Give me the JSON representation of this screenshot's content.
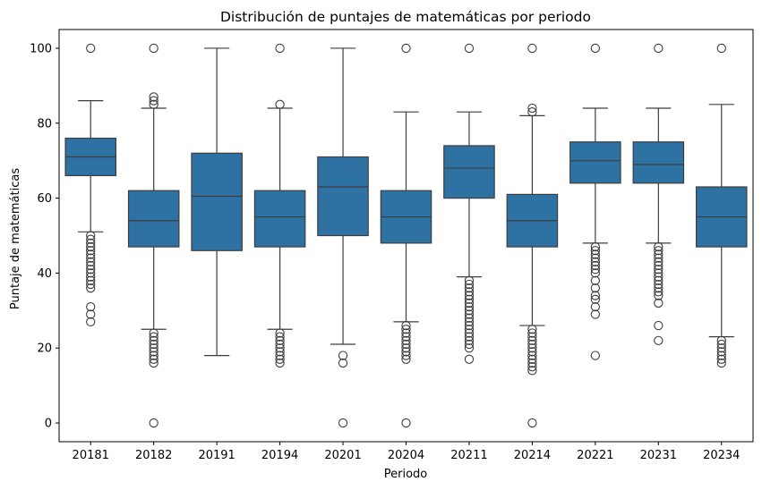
{
  "chart_data": {
    "type": "box",
    "title": "Distribución de puntajes de matemáticas por periodo",
    "xlabel": "Periodo",
    "ylabel": "Puntaje de matemáticas",
    "ylim": [
      -5,
      105
    ],
    "yticks": [
      0,
      20,
      40,
      60,
      80,
      100
    ],
    "grid": false,
    "color": "#2e71a3",
    "categories": [
      "20181",
      "20182",
      "20191",
      "20194",
      "20201",
      "20204",
      "20211",
      "20214",
      "20221",
      "20231",
      "20234"
    ],
    "boxes": [
      {
        "whislo": 51,
        "q1": 66,
        "med": 71,
        "q3": 76,
        "whishi": 86,
        "fliers": [
          27,
          29,
          31,
          36,
          37,
          38,
          39,
          40,
          41,
          42,
          43,
          44,
          45,
          46,
          47,
          48,
          49,
          50,
          100
        ]
      },
      {
        "whislo": 25,
        "q1": 47,
        "med": 54,
        "q3": 62,
        "whishi": 84,
        "fliers": [
          0,
          16,
          17,
          18,
          19,
          20,
          21,
          22,
          23,
          24,
          85,
          86,
          87,
          100
        ]
      },
      {
        "whislo": 18,
        "q1": 46,
        "med": 60.5,
        "q3": 72,
        "whishi": 100,
        "fliers": []
      },
      {
        "whislo": 25,
        "q1": 47,
        "med": 55,
        "q3": 62,
        "whishi": 84,
        "fliers": [
          16,
          17,
          18,
          19,
          20,
          21,
          22,
          23,
          24,
          85,
          100
        ]
      },
      {
        "whislo": 21,
        "q1": 50,
        "med": 63,
        "q3": 71,
        "whishi": 100,
        "fliers": [
          0,
          16,
          18
        ]
      },
      {
        "whislo": 27,
        "q1": 48,
        "med": 55,
        "q3": 62,
        "whishi": 83,
        "fliers": [
          0,
          17,
          18,
          19,
          20,
          21,
          22,
          23,
          24,
          25,
          26,
          100
        ]
      },
      {
        "whislo": 39,
        "q1": 60,
        "med": 68,
        "q3": 74,
        "whishi": 83,
        "fliers": [
          17,
          20,
          21,
          22,
          23,
          24,
          25,
          26,
          27,
          28,
          29,
          30,
          31,
          32,
          33,
          34,
          35,
          36,
          37,
          38,
          100
        ]
      },
      {
        "whislo": 26,
        "q1": 47,
        "med": 54,
        "q3": 61,
        "whishi": 82,
        "fliers": [
          0,
          14,
          15,
          16,
          17,
          18,
          19,
          20,
          21,
          22,
          23,
          24,
          25,
          83,
          84,
          100
        ]
      },
      {
        "whislo": 48,
        "q1": 64,
        "med": 70,
        "q3": 75,
        "whishi": 84,
        "fliers": [
          18,
          29,
          31,
          33,
          34,
          36,
          38,
          40,
          41,
          42,
          43,
          44,
          45,
          46,
          47,
          100
        ]
      },
      {
        "whislo": 48,
        "q1": 64,
        "med": 69,
        "q3": 75,
        "whishi": 84,
        "fliers": [
          22,
          26,
          32,
          34,
          35,
          36,
          37,
          38,
          39,
          40,
          41,
          42,
          43,
          44,
          45,
          46,
          47,
          100
        ]
      },
      {
        "whislo": 23,
        "q1": 47,
        "med": 55,
        "q3": 63,
        "whishi": 85,
        "fliers": [
          16,
          17,
          18,
          19,
          20,
          21,
          22,
          100
        ]
      }
    ]
  }
}
